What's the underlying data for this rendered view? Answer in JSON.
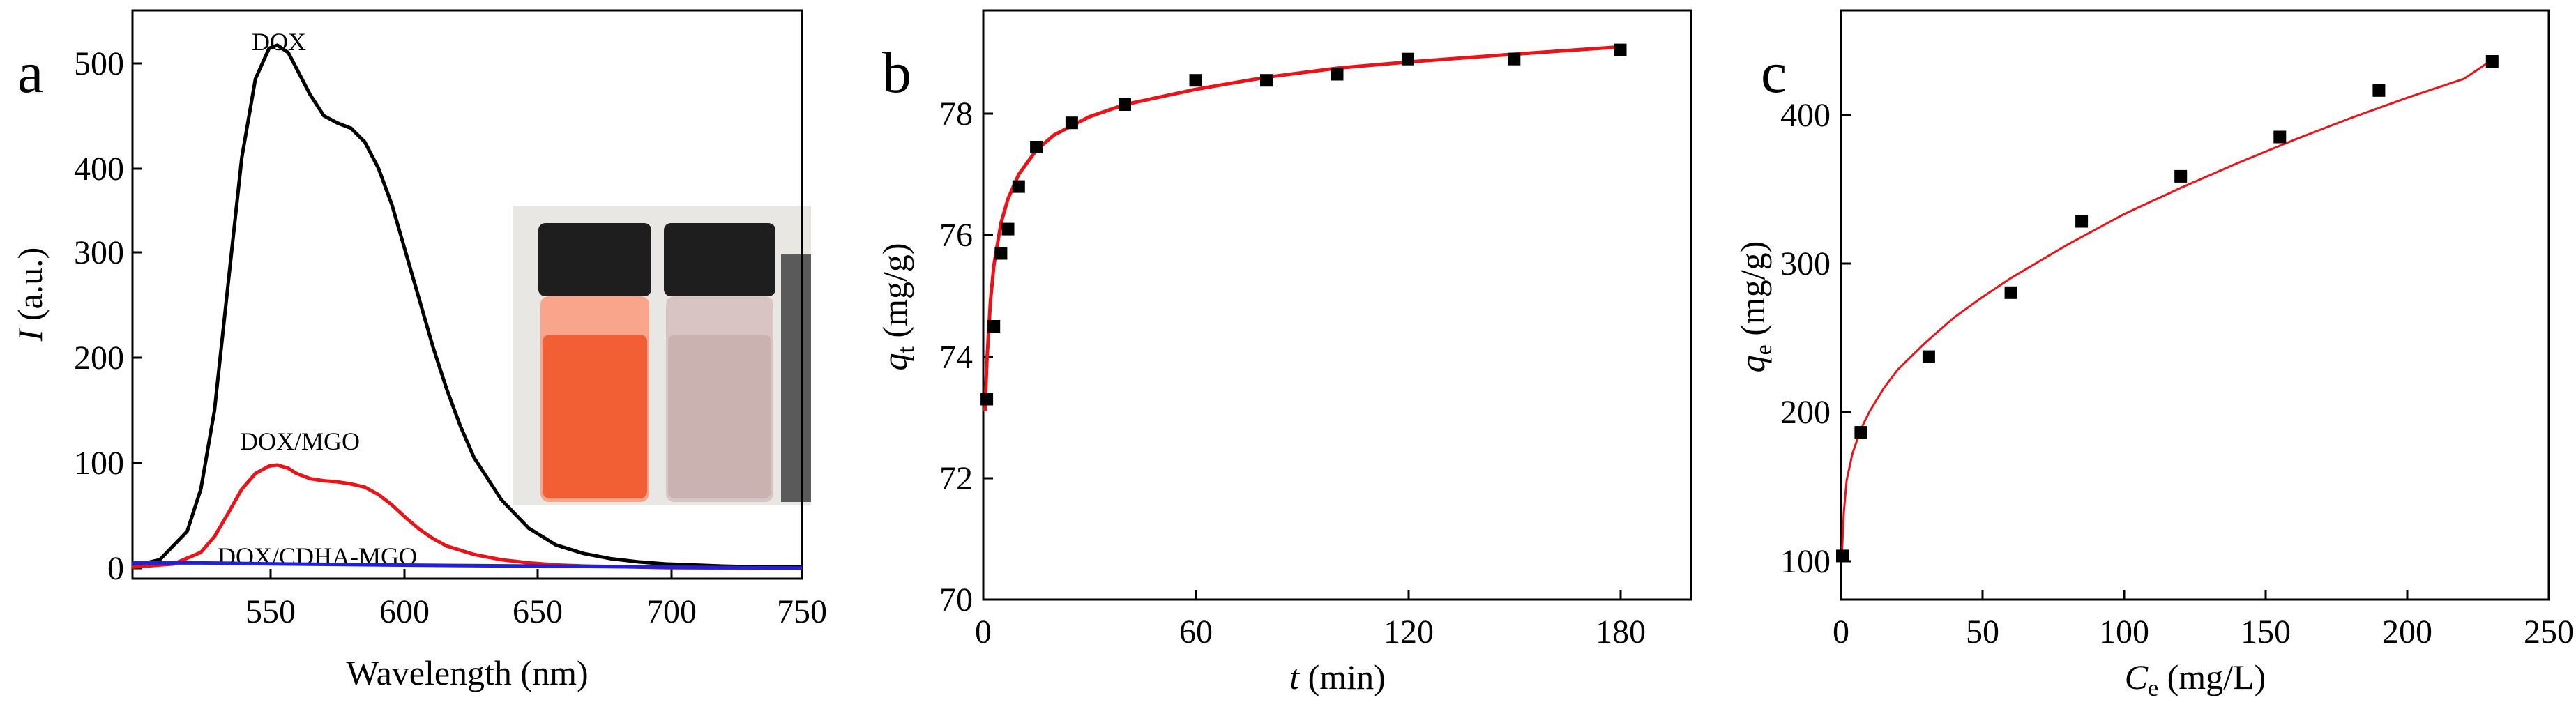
{
  "colors": {
    "dox": "#000000",
    "dox_mgo": "#e8141a",
    "dox_cdha_mgo": "#2020e0",
    "fit": "#e8141a",
    "points": "#000000"
  },
  "chart_data": [
    {
      "type": "line",
      "panel": "a",
      "xlabel": "Wavelength (nm)",
      "ylabel_italic": "I",
      "ylabel_rest": " (a.u.)",
      "xlim": [
        505,
        750
      ],
      "ylim": [
        -10,
        530
      ],
      "xticks": [
        550,
        600,
        650,
        700,
        750
      ],
      "yticks": [
        0,
        100,
        200,
        300,
        400,
        500
      ],
      "grid": false,
      "inset": "photo of two capped vials: left orange DOX solution, right nearly colorless solution next to a magnet",
      "series": [
        {
          "name": "DOX",
          "color": "#000000",
          "x": [
            505,
            515,
            525,
            530,
            535,
            540,
            545,
            550,
            555,
            558,
            562,
            565,
            570,
            575,
            580,
            585,
            590,
            595,
            600,
            605,
            610,
            615,
            620,
            625,
            630,
            640,
            650,
            660,
            670,
            680,
            690,
            700,
            710,
            720,
            735,
            750
          ],
          "y": [
            2,
            8,
            35,
            75,
            150,
            270,
            390,
            465,
            494,
            497,
            490,
            475,
            450,
            430,
            423,
            418,
            405,
            380,
            345,
            300,
            255,
            210,
            170,
            135,
            105,
            65,
            38,
            22,
            14,
            9,
            6,
            4,
            3,
            2,
            1,
            1
          ]
        },
        {
          "name": "DOX/MGO",
          "color": "#e8141a",
          "x": [
            505,
            520,
            530,
            535,
            540,
            545,
            550,
            555,
            558,
            562,
            565,
            570,
            575,
            580,
            585,
            590,
            595,
            600,
            605,
            610,
            615,
            620,
            630,
            640,
            650,
            660,
            670,
            680,
            690,
            700,
            720,
            750
          ],
          "y": [
            1,
            4,
            15,
            30,
            52,
            75,
            90,
            97,
            98,
            95,
            90,
            85,
            83,
            82,
            80,
            77,
            70,
            60,
            48,
            37,
            28,
            21,
            13,
            8,
            5,
            3,
            2,
            1.5,
            1,
            0.5,
            0.2,
            0
          ]
        },
        {
          "name": "DOX/CDHA-MGO",
          "color": "#2020e0",
          "x": [
            505,
            530,
            560,
            600,
            650,
            700,
            750
          ],
          "y": [
            5,
            5,
            4,
            3,
            2,
            1,
            0
          ]
        }
      ],
      "annotations": [
        "DOX",
        "DOX/MGO",
        "DOX/CDHA-MGO"
      ]
    },
    {
      "type": "scatter",
      "panel": "b",
      "xlabel_italic": "t",
      "xlabel_rest": " (min)",
      "ylabel_italic": "q",
      "ylabel_sub": "t",
      "ylabel_rest": " (mg/g)",
      "xlim": [
        0,
        200
      ],
      "ylim": [
        70,
        79.7
      ],
      "xticks": [
        0,
        60,
        120,
        180
      ],
      "yticks": [
        70,
        72,
        74,
        76,
        78
      ],
      "grid": false,
      "points": {
        "x": [
          1,
          3,
          5,
          7,
          10,
          15,
          25,
          40,
          60,
          80,
          100,
          120,
          150,
          180
        ],
        "y": [
          73.3,
          74.5,
          75.7,
          76.1,
          76.8,
          77.45,
          77.85,
          78.15,
          78.55,
          78.55,
          78.65,
          78.9,
          78.9,
          79.05
        ]
      },
      "fit": {
        "x": [
          0.5,
          1,
          2,
          3,
          5,
          7,
          10,
          15,
          20,
          30,
          40,
          60,
          80,
          100,
          120,
          150,
          180
        ],
        "y": [
          73.1,
          73.9,
          74.9,
          75.5,
          76.2,
          76.6,
          77.0,
          77.4,
          77.65,
          77.95,
          78.15,
          78.4,
          78.6,
          78.75,
          78.85,
          78.98,
          79.1
        ]
      }
    },
    {
      "type": "scatter",
      "panel": "c",
      "xlabel_italic": "C",
      "xlabel_sub": "e",
      "xlabel_rest": " (mg/L)",
      "ylabel_italic": "q",
      "ylabel_sub": "e",
      "ylabel_rest": " (mg/g)",
      "xlim": [
        0,
        250
      ],
      "ylim": [
        70,
        475
      ],
      "xticks": [
        0,
        50,
        100,
        150,
        200,
        250
      ],
      "yticks": [
        100,
        200,
        300,
        400
      ],
      "grid": false,
      "points": {
        "x": [
          0.5,
          7,
          31,
          60,
          85,
          120,
          155,
          190,
          230
        ],
        "y": [
          100,
          185,
          237,
          281,
          330,
          361,
          388,
          420,
          440
        ]
      },
      "fit": {
        "x": [
          0.3,
          1,
          2,
          4,
          7,
          10,
          15,
          20,
          30,
          40,
          50,
          60,
          80,
          100,
          120,
          140,
          160,
          180,
          200,
          220,
          230
        ],
        "y": [
          100,
          130,
          152,
          170,
          187,
          199,
          215,
          228,
          247,
          264,
          278,
          291,
          314,
          335,
          353,
          370,
          386,
          401,
          415,
          428,
          441
        ]
      }
    }
  ]
}
